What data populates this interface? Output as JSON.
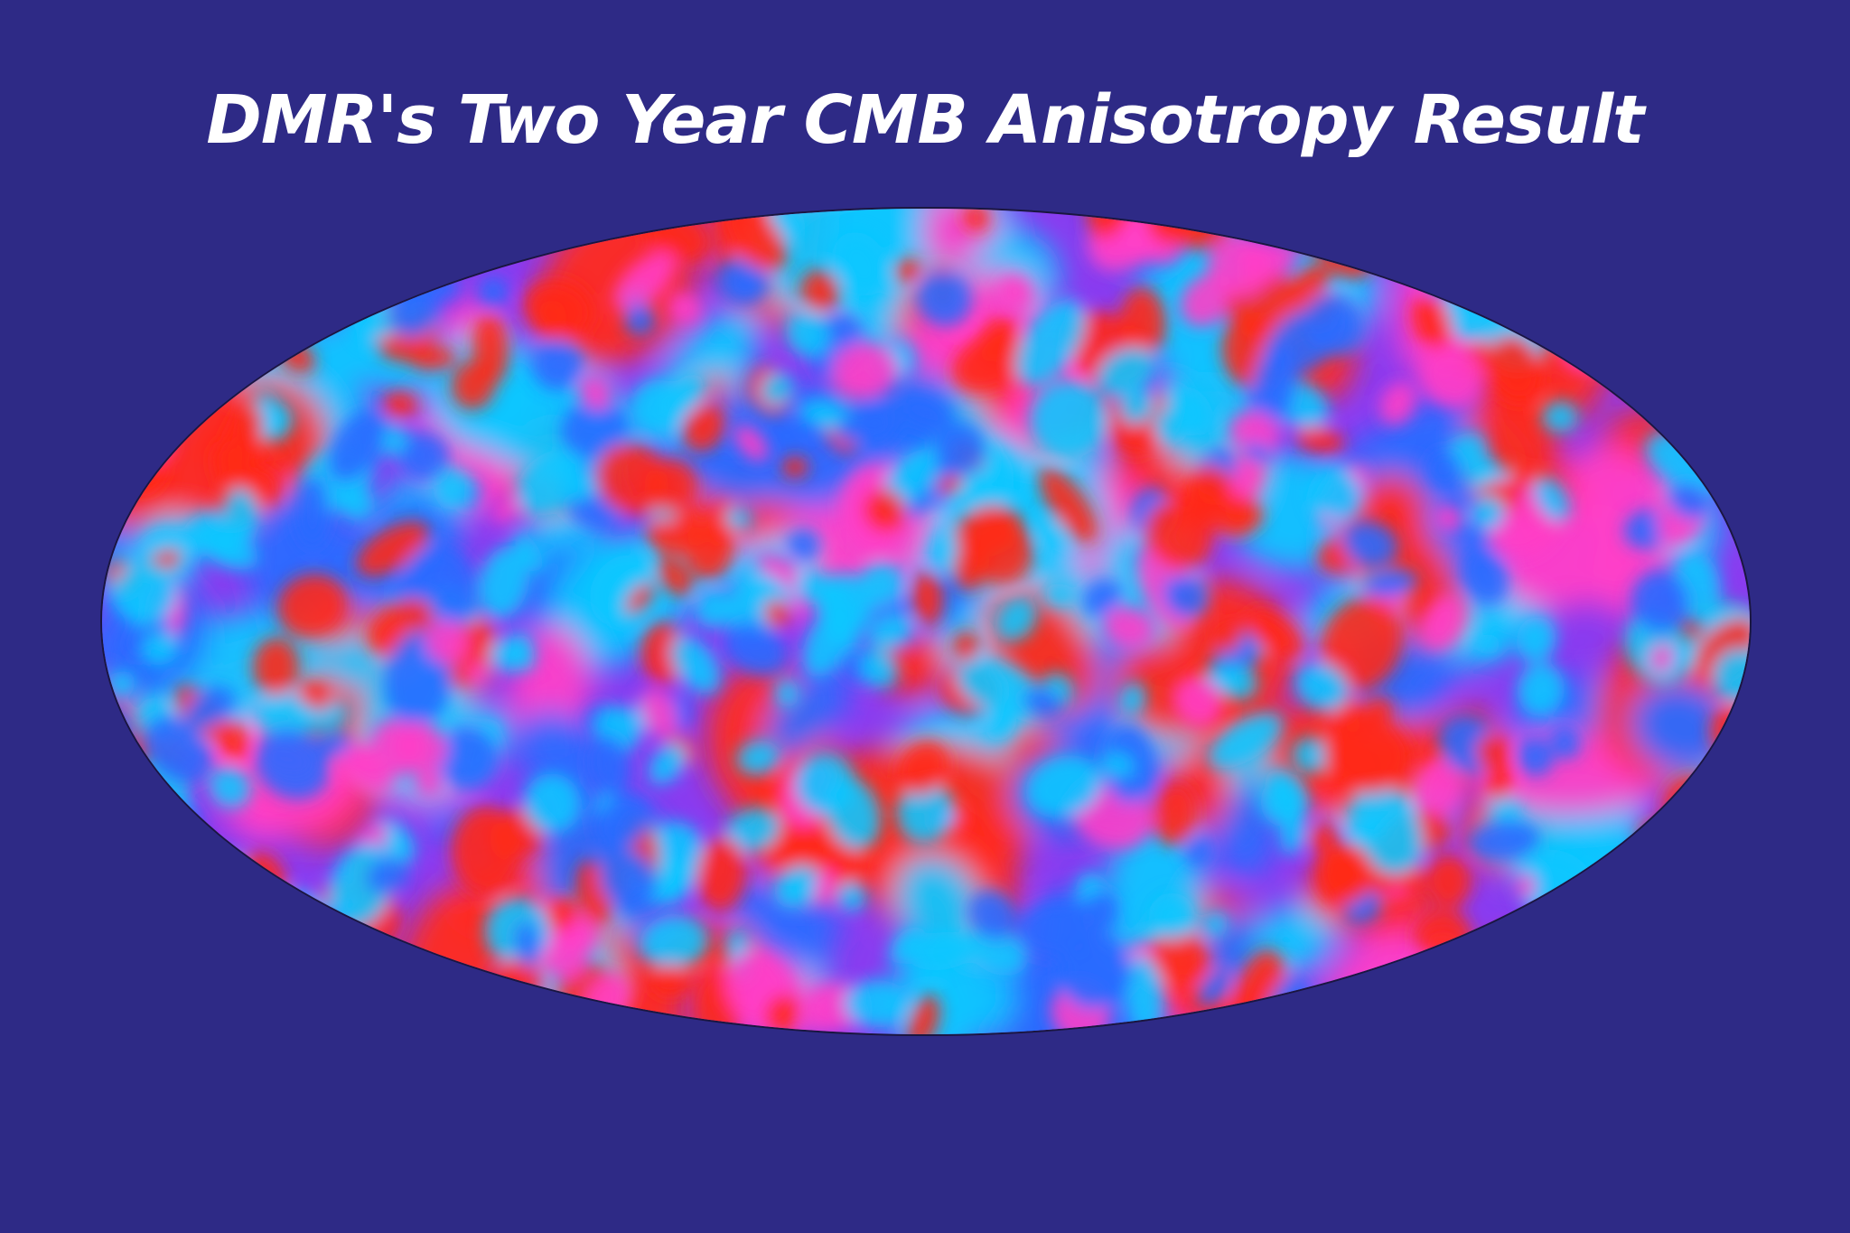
{
  "slide": {
    "title": "DMR's Two Year CMB Anisotropy Result",
    "background_color": "#2e2a86",
    "title_color": "#ffffff"
  },
  "sky_map": {
    "projection": "mollweide",
    "palette": {
      "hot": "#ff2a1a",
      "warm": "#ff3fc8",
      "neutral": "#8a3cf0",
      "cool": "#2a6cff",
      "cold": "#10c6ff"
    }
  }
}
